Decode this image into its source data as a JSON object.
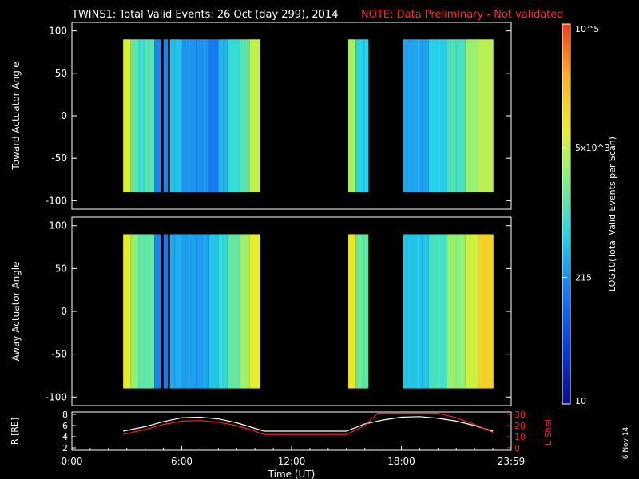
{
  "header": {
    "title": "TWINS1: Total Valid Events: 26 Oct (day 299), 2014",
    "note": "NOTE: Data Preliminary - Not validated"
  },
  "colors": {
    "note": "#ff2a2a",
    "white_trace": "#ffffff",
    "red_trace": "#ff2020",
    "colormap": [
      "#0a0a8a",
      "#0a3ad8",
      "#1a7cf2",
      "#25d6e6",
      "#8af07a",
      "#e6f02a",
      "#ffb020",
      "#ff3a10"
    ]
  },
  "colorbar": {
    "label": "LOG10(Total Valid Events per Scan)",
    "ticks": [
      "10",
      "215",
      "5x10^3",
      "10^5"
    ]
  },
  "footer": {
    "date_stamp": "6 Nov 14"
  },
  "chart_data": [
    {
      "type": "heatmap",
      "ylabel": "Toward Actuator Angle",
      "ylim": [
        -110,
        110
      ],
      "yticks": [
        100,
        50,
        0,
        -50,
        -100
      ],
      "xlim": [
        0,
        24
      ],
      "angle_range": [
        -90,
        90
      ],
      "data_intervals": [
        [
          2.8,
          10.3
        ],
        [
          15.1,
          16.2
        ],
        [
          18.1,
          23.0
        ]
      ],
      "gaps": [
        [
          4.85,
          5.0
        ],
        [
          5.25,
          5.35
        ]
      ],
      "columns": [
        {
          "t": [
            2.8,
            3.2
          ],
          "v": 0.7
        },
        {
          "t": [
            3.2,
            3.6
          ],
          "v": 0.52
        },
        {
          "t": [
            3.6,
            4.0
          ],
          "v": 0.45
        },
        {
          "t": [
            4.0,
            4.5
          ],
          "v": 0.5
        },
        {
          "t": [
            4.5,
            4.85
          ],
          "v": 0.3
        },
        {
          "t": [
            5.0,
            5.25
          ],
          "v": 0.3
        },
        {
          "t": [
            5.35,
            6.0
          ],
          "v": 0.4
        },
        {
          "t": [
            6.0,
            7.5
          ],
          "v": 0.32
        },
        {
          "t": [
            7.5,
            8.0
          ],
          "v": 0.28
        },
        {
          "t": [
            8.0,
            8.5
          ],
          "v": 0.38
        },
        {
          "t": [
            8.5,
            9.2
          ],
          "v": 0.45
        },
        {
          "t": [
            9.2,
            9.7
          ],
          "v": 0.5
        },
        {
          "t": [
            9.7,
            10.3
          ],
          "v": 0.66
        },
        {
          "t": [
            15.1,
            15.5
          ],
          "v": 0.62
        },
        {
          "t": [
            15.5,
            16.2
          ],
          "v": 0.42
        },
        {
          "t": [
            18.1,
            19.5
          ],
          "v": 0.35
        },
        {
          "t": [
            19.5,
            20.5
          ],
          "v": 0.42
        },
        {
          "t": [
            20.5,
            21.5
          ],
          "v": 0.48
        },
        {
          "t": [
            21.5,
            22.2
          ],
          "v": 0.6
        },
        {
          "t": [
            22.2,
            23.0
          ],
          "v": 0.64
        }
      ]
    },
    {
      "type": "heatmap",
      "ylabel": "Away Actuator Angle",
      "ylim": [
        -110,
        110
      ],
      "yticks": [
        100,
        50,
        0,
        -50,
        -100
      ],
      "xlim": [
        0,
        24
      ],
      "angle_range": [
        -90,
        90
      ],
      "data_intervals": [
        [
          2.8,
          10.3
        ],
        [
          15.1,
          16.2
        ],
        [
          18.1,
          23.0
        ]
      ],
      "gaps": [
        [
          4.85,
          5.0
        ],
        [
          5.25,
          5.35
        ]
      ],
      "columns": [
        {
          "t": [
            2.8,
            3.2
          ],
          "v": 0.72
        },
        {
          "t": [
            3.2,
            3.6
          ],
          "v": 0.58
        },
        {
          "t": [
            3.6,
            4.0
          ],
          "v": 0.5
        },
        {
          "t": [
            4.0,
            4.5
          ],
          "v": 0.52
        },
        {
          "t": [
            4.5,
            4.85
          ],
          "v": 0.3
        },
        {
          "t": [
            5.0,
            5.25
          ],
          "v": 0.28
        },
        {
          "t": [
            5.35,
            6.0
          ],
          "v": 0.36
        },
        {
          "t": [
            6.0,
            7.5
          ],
          "v": 0.34
        },
        {
          "t": [
            7.5,
            8.0
          ],
          "v": 0.4
        },
        {
          "t": [
            8.0,
            8.5
          ],
          "v": 0.45
        },
        {
          "t": [
            8.5,
            9.2
          ],
          "v": 0.52
        },
        {
          "t": [
            9.2,
            9.7
          ],
          "v": 0.6
        },
        {
          "t": [
            9.7,
            10.3
          ],
          "v": 0.72
        },
        {
          "t": [
            15.1,
            15.5
          ],
          "v": 0.74
        },
        {
          "t": [
            15.5,
            16.2
          ],
          "v": 0.52
        },
        {
          "t": [
            18.1,
            19.5
          ],
          "v": 0.4
        },
        {
          "t": [
            19.5,
            20.5
          ],
          "v": 0.48
        },
        {
          "t": [
            20.5,
            21.5
          ],
          "v": 0.58
        },
        {
          "t": [
            21.5,
            22.2
          ],
          "v": 0.68
        },
        {
          "t": [
            22.2,
            23.0
          ],
          "v": 0.78
        }
      ]
    },
    {
      "type": "line",
      "ylabel_left": "R [RE]",
      "ylabel_right": "L Shell",
      "xlabel": "Time (UT)",
      "xlim": [
        0,
        24
      ],
      "xticks": [
        0,
        6,
        12,
        18,
        24
      ],
      "xticklabels": [
        "0:00",
        "6:00",
        "12:00",
        "18:00",
        "23:59"
      ],
      "ylim_left": [
        2,
        8
      ],
      "yticks_left": [
        2,
        4,
        6,
        8
      ],
      "ylim_right": [
        0,
        30
      ],
      "yticks_right": [
        0,
        10,
        20,
        30
      ],
      "series": [
        {
          "name": "R",
          "axis": "left",
          "x": [
            2.8,
            4.0,
            5.0,
            6.0,
            7.0,
            8.0,
            9.0,
            10.0,
            10.5,
            15.0,
            16.0,
            17.0,
            18.0,
            19.0,
            20.0,
            21.0,
            22.0,
            23.0
          ],
          "y": [
            5.0,
            5.8,
            6.7,
            7.4,
            7.5,
            7.2,
            6.5,
            5.5,
            5.0,
            5.0,
            6.3,
            7.0,
            7.5,
            7.6,
            7.3,
            6.8,
            6.0,
            5.0
          ]
        },
        {
          "name": "L Shell",
          "axis": "right",
          "x": [
            2.8,
            4.0,
            5.0,
            6.0,
            7.0,
            8.0,
            9.0,
            10.0,
            10.5,
            15.0,
            16.0,
            16.7,
            20.0,
            21.0,
            22.0,
            23.0
          ],
          "y": [
            12,
            16.5,
            21,
            24,
            24.5,
            23,
            20,
            15,
            12,
            12,
            20,
            31,
            31,
            27,
            21,
            14
          ]
        }
      ]
    }
  ]
}
